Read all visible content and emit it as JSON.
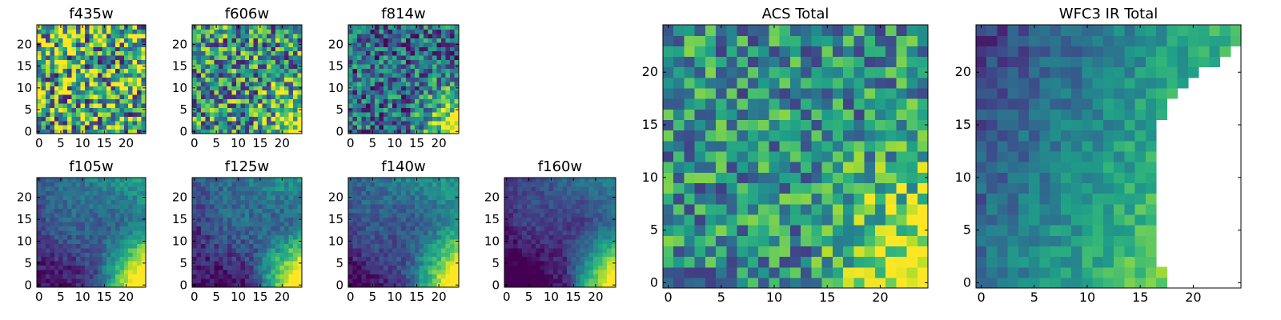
{
  "figure": {
    "layout": "grid of 7 small filter heatmaps (2 rows) plus 2 large total heatmaps on the right",
    "colormap": "viridis",
    "colormap_stops": [
      "#440154",
      "#482878",
      "#3e4989",
      "#31688e",
      "#26828e",
      "#1f9e89",
      "#35b779",
      "#6ece58",
      "#b5de2b",
      "#fde725"
    ]
  },
  "chart_data": [
    {
      "id": "f435w",
      "type": "heatmap",
      "title": "f435w",
      "grid": [
        25,
        25
      ],
      "xlim": [
        0,
        24
      ],
      "ylim": [
        0,
        24
      ],
      "xticks": [
        0,
        5,
        10,
        15,
        20
      ],
      "yticks": [
        0,
        5,
        10,
        15,
        20
      ],
      "field": {
        "pattern": "noisy",
        "base": 0.62,
        "gradient": 0.0,
        "noise": 0.55,
        "seed": 11
      },
      "xlabel": "",
      "ylabel": ""
    },
    {
      "id": "f606w",
      "type": "heatmap",
      "title": "f606w",
      "grid": [
        25,
        25
      ],
      "xlim": [
        0,
        24
      ],
      "ylim": [
        0,
        24
      ],
      "xticks": [
        0,
        5,
        10,
        15,
        20
      ],
      "yticks": [
        0,
        5,
        10,
        15,
        20
      ],
      "field": {
        "pattern": "noisy_corner",
        "base": 0.52,
        "gradient": 0.35,
        "noise": 0.45,
        "seed": 23
      },
      "xlabel": "",
      "ylabel": ""
    },
    {
      "id": "f814w",
      "type": "heatmap",
      "title": "f814w",
      "grid": [
        25,
        25
      ],
      "xlim": [
        0,
        24
      ],
      "ylim": [
        0,
        24
      ],
      "xticks": [
        0,
        5,
        10,
        15,
        20
      ],
      "yticks": [
        0,
        5,
        10,
        15,
        20
      ],
      "field": {
        "pattern": "noisy_corner",
        "base": 0.36,
        "gradient": 0.55,
        "noise": 0.35,
        "seed": 37
      },
      "xlabel": "",
      "ylabel": ""
    },
    {
      "id": "f105w",
      "type": "heatmap",
      "title": "f105w",
      "grid": [
        25,
        25
      ],
      "xlim": [
        0,
        24
      ],
      "ylim": [
        0,
        24
      ],
      "xticks": [
        0,
        5,
        10,
        15,
        20
      ],
      "yticks": [
        0,
        5,
        10,
        15,
        20
      ],
      "field": {
        "pattern": "smooth_corner",
        "base": 0.3,
        "gradient": 0.75,
        "noise": 0.1,
        "seed": 41
      },
      "xlabel": "",
      "ylabel": ""
    },
    {
      "id": "f125w",
      "type": "heatmap",
      "title": "f125w",
      "grid": [
        25,
        25
      ],
      "xlim": [
        0,
        24
      ],
      "ylim": [
        0,
        24
      ],
      "xticks": [
        0,
        5,
        10,
        15,
        20
      ],
      "yticks": [
        0,
        5,
        10,
        15,
        20
      ],
      "field": {
        "pattern": "smooth_corner",
        "base": 0.28,
        "gradient": 0.75,
        "noise": 0.12,
        "seed": 53
      },
      "xlabel": "",
      "ylabel": ""
    },
    {
      "id": "f140w",
      "type": "heatmap",
      "title": "f140w",
      "grid": [
        25,
        25
      ],
      "xlim": [
        0,
        24
      ],
      "ylim": [
        0,
        24
      ],
      "xticks": [
        0,
        5,
        10,
        15,
        20
      ],
      "yticks": [
        0,
        5,
        10,
        15,
        20
      ],
      "field": {
        "pattern": "smooth_corner",
        "base": 0.3,
        "gradient": 0.78,
        "noise": 0.1,
        "seed": 67
      },
      "xlabel": "",
      "ylabel": ""
    },
    {
      "id": "f160w",
      "type": "heatmap",
      "title": "f160w",
      "grid": [
        25,
        25
      ],
      "xlim": [
        0,
        24
      ],
      "ylim": [
        0,
        24
      ],
      "xticks": [
        0,
        5,
        10,
        15,
        20
      ],
      "yticks": [
        0,
        5,
        10,
        15,
        20
      ],
      "field": {
        "pattern": "smooth_corner",
        "base": 0.18,
        "gradient": 0.8,
        "noise": 0.08,
        "seed": 79
      },
      "xlabel": "",
      "ylabel": ""
    },
    {
      "id": "acs-total",
      "type": "heatmap",
      "title": "ACS Total",
      "grid": [
        25,
        25
      ],
      "xlim": [
        0,
        24
      ],
      "ylim": [
        0,
        24
      ],
      "xticks": [
        0,
        5,
        10,
        15,
        20
      ],
      "yticks": [
        0,
        5,
        10,
        15,
        20
      ],
      "field": {
        "pattern": "noisy_corner",
        "base": 0.5,
        "gradient": 0.5,
        "noise": 0.32,
        "seed": 97
      },
      "xlabel": "",
      "ylabel": ""
    },
    {
      "id": "wfc3-ir-total",
      "type": "heatmap",
      "title": "WFC3 IR Total",
      "grid": [
        25,
        25
      ],
      "xlim": [
        0,
        24
      ],
      "ylim": [
        0,
        24
      ],
      "xticks": [
        0,
        5,
        10,
        15,
        20
      ],
      "yticks": [
        0,
        5,
        10,
        15,
        20
      ],
      "field": {
        "pattern": "gradient_masked",
        "base": 0.25,
        "gradient": 0.7,
        "noise": 0.12,
        "seed": 131,
        "masked_right_edge_by_row": [
          17,
          17,
          16,
          16,
          16,
          16,
          16,
          16,
          16,
          16,
          16,
          16,
          16,
          16,
          16,
          16,
          17,
          17,
          18,
          19,
          20,
          22,
          23,
          24,
          24
        ]
      },
      "xlabel": "",
      "ylabel": ""
    }
  ]
}
